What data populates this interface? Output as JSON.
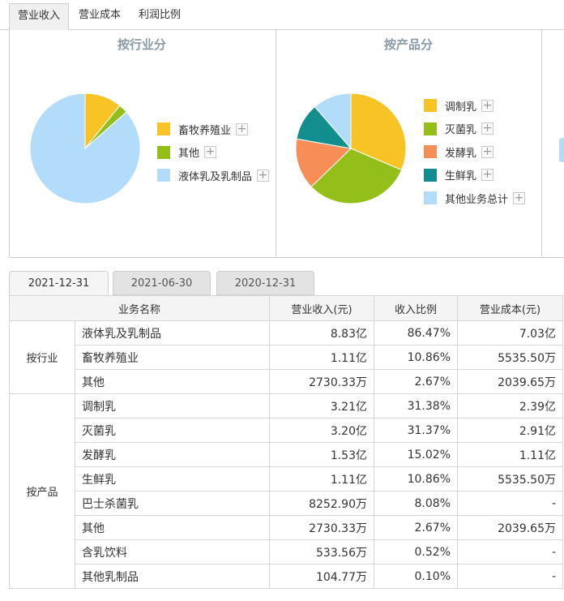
{
  "top_tabs": [
    "营业收入",
    "营业成本",
    "利润比例"
  ],
  "active_tab": 0,
  "colors": {
    "yellow": "#f7c325",
    "green": "#94bf1a",
    "orange": "#f78e57",
    "teal": "#128e8e",
    "lightblue": "#b3dcfa"
  },
  "chart_data": [
    {
      "type": "pie",
      "title": "按行业分",
      "slices": [
        {
          "label": "畜牧养殖业",
          "value": 10.86,
          "color": "#f7c325"
        },
        {
          "label": "其他",
          "value": 2.67,
          "color": "#94bf1a"
        },
        {
          "label": "液体乳及乳制品",
          "value": 86.47,
          "color": "#b3dcfa"
        }
      ]
    },
    {
      "type": "pie",
      "title": "按产品分",
      "slices": [
        {
          "label": "调制乳",
          "value": 31.38,
          "color": "#f7c325"
        },
        {
          "label": "灭菌乳",
          "value": 31.37,
          "color": "#94bf1a"
        },
        {
          "label": "发酵乳",
          "value": 15.02,
          "color": "#f78e57"
        },
        {
          "label": "生鲜乳",
          "value": 10.86,
          "color": "#128e8e"
        },
        {
          "label": "其他业务总计",
          "value": 11.37,
          "color": "#b3dcfa"
        }
      ]
    }
  ],
  "date_tabs": [
    "2021-12-31",
    "2021-06-30",
    "2020-12-31"
  ],
  "table": {
    "headers": [
      "业务名称",
      "营业收入(元)",
      "收入比例",
      "营业成本(元)"
    ],
    "groups": [
      {
        "name": "按行业",
        "rows": [
          [
            "液体乳及乳制品",
            "8.83亿",
            "86.47%",
            "7.03亿"
          ],
          [
            "畜牧养殖业",
            "1.11亿",
            "10.86%",
            "5535.50万"
          ],
          [
            "其他",
            "2730.33万",
            "2.67%",
            "2039.65万"
          ]
        ]
      },
      {
        "name": "按产品",
        "rows": [
          [
            "调制乳",
            "3.21亿",
            "31.38%",
            "2.39亿"
          ],
          [
            "灭菌乳",
            "3.20亿",
            "31.37%",
            "2.91亿"
          ],
          [
            "发酵乳",
            "1.53亿",
            "15.02%",
            "1.11亿"
          ],
          [
            "生鲜乳",
            "1.11亿",
            "10.86%",
            "5535.50万"
          ],
          [
            "巴士杀菌乳",
            "8252.90万",
            "8.08%",
            "-"
          ],
          [
            "其他",
            "2730.33万",
            "2.67%",
            "2039.65万"
          ],
          [
            "含乳饮料",
            "533.56万",
            "0.52%",
            "-"
          ],
          [
            "其他乳制品",
            "104.77万",
            "0.10%",
            "-"
          ]
        ]
      }
    ]
  }
}
